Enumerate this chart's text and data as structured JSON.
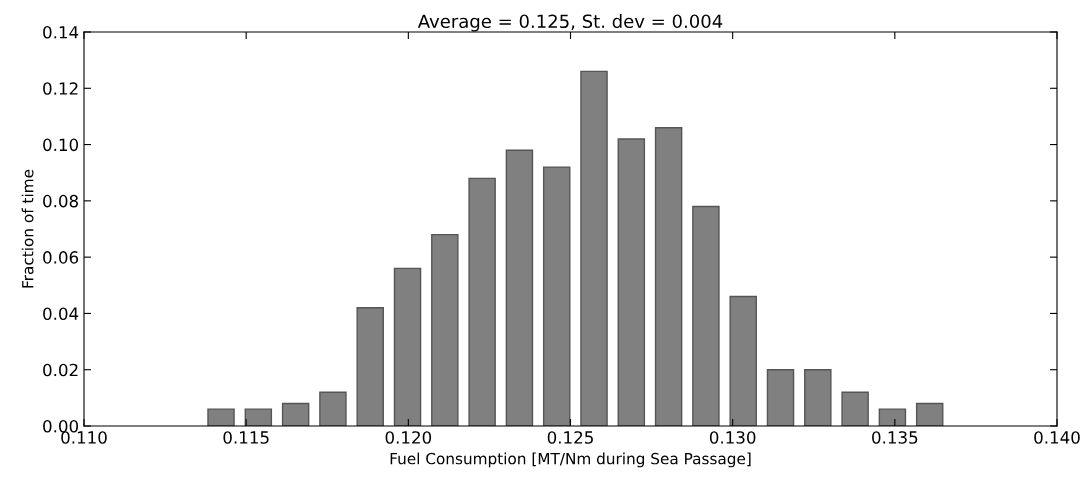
{
  "chart_data": {
    "type": "histogram",
    "title": "Average = 0.125, St. dev = 0.004",
    "xlabel": "Fuel Consumption [MT/Nm during Sea Passage]",
    "ylabel": "Fraction of time",
    "bins": [
      0.11365,
      0.1148,
      0.11595,
      0.1171,
      0.11825,
      0.1194,
      0.12055,
      0.1217,
      0.12285,
      0.124,
      0.12515,
      0.1263,
      0.12745,
      0.1286,
      0.12975,
      0.1309,
      0.13205,
      0.1332,
      0.13435,
      0.1355,
      0.13665
    ],
    "values": [
      0.006,
      0.006,
      0.008,
      0.012,
      0.042,
      0.056,
      0.068,
      0.088,
      0.098,
      0.092,
      0.126,
      0.102,
      0.106,
      0.078,
      0.046,
      0.02,
      0.02,
      0.012,
      0.006,
      0.008
    ],
    "color": "#808080",
    "xlim": [
      0.11,
      0.14
    ],
    "xticks": [
      {
        "value": 0.11,
        "label": "0.110"
      },
      0.115,
      {
        "value": 0.12,
        "label": "0.120"
      },
      0.125,
      {
        "value": 0.13,
        "label": "0.130"
      },
      0.135,
      {
        "value": 0.14,
        "label": "0.140"
      }
    ],
    "ylim": [
      0,
      0.14
    ],
    "yticks": [
      {
        "value": 0,
        "label": "0.00"
      },
      0.02,
      0.04,
      0.06,
      0.08,
      {
        "value": 0.1,
        "label": "0.10"
      },
      0.12,
      0.14
    ],
    "grid": false
  }
}
